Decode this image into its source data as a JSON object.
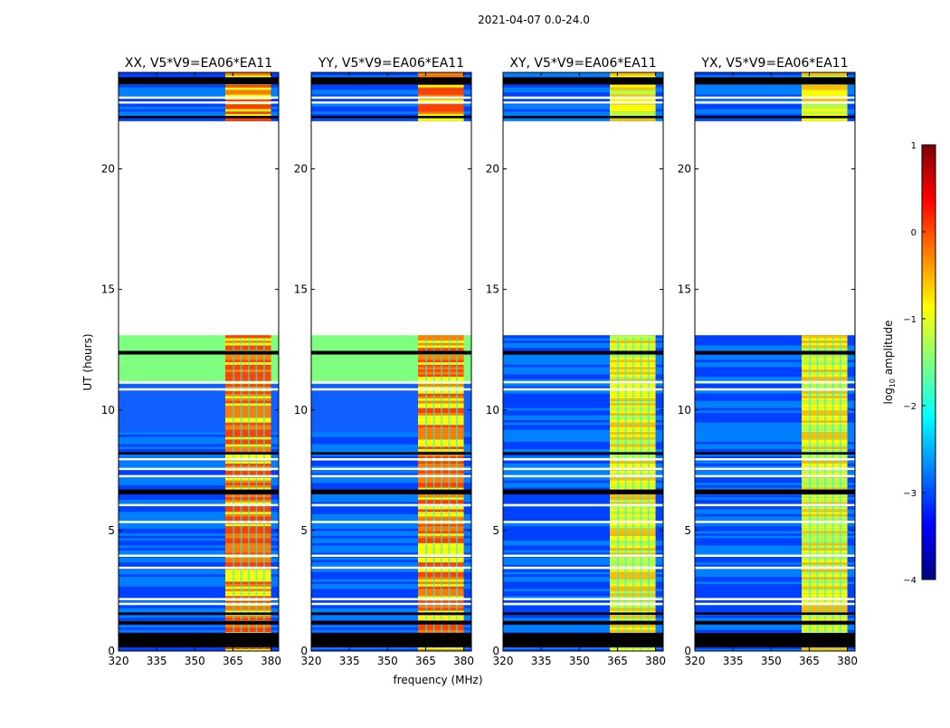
{
  "figure": {
    "suptitle": "2021-04-07 0.0-24.0",
    "xlabel": "frequency (MHz)",
    "ylabel": "UT (hours)"
  },
  "colorbar": {
    "label_prefix": "log",
    "label_sub": "10",
    "label_suffix": " amplitude",
    "range": [
      -4,
      1
    ],
    "ticks": [
      1,
      0,
      -1,
      -2,
      -3,
      -4
    ],
    "tick_labels": [
      "1",
      "0",
      "−1",
      "−2",
      "−3",
      "−4"
    ],
    "colormap": "jet",
    "colors": [
      "#00007f",
      "#0000ff",
      "#007fff",
      "#00ffff",
      "#7fff7f",
      "#ffff00",
      "#ff7f00",
      "#ff0000",
      "#7f0000"
    ]
  },
  "chart_data": {
    "type": "heatmap",
    "x_range": [
      320,
      383
    ],
    "y_range": [
      0,
      24
    ],
    "x_ticks": [
      320,
      335,
      350,
      365,
      380
    ],
    "y_ticks": [
      0,
      5,
      10,
      15,
      20
    ],
    "gap_hours": [
      13.0,
      22.0
    ],
    "panels": [
      {
        "title": "XX, V5*V9=EA06*EA11"
      },
      {
        "title": "YY, V5*V9=EA06*EA11"
      },
      {
        "title": "XY, V5*V9=EA06*EA11"
      },
      {
        "title": "YX, V5*V9=EA06*EA11"
      }
    ]
  }
}
